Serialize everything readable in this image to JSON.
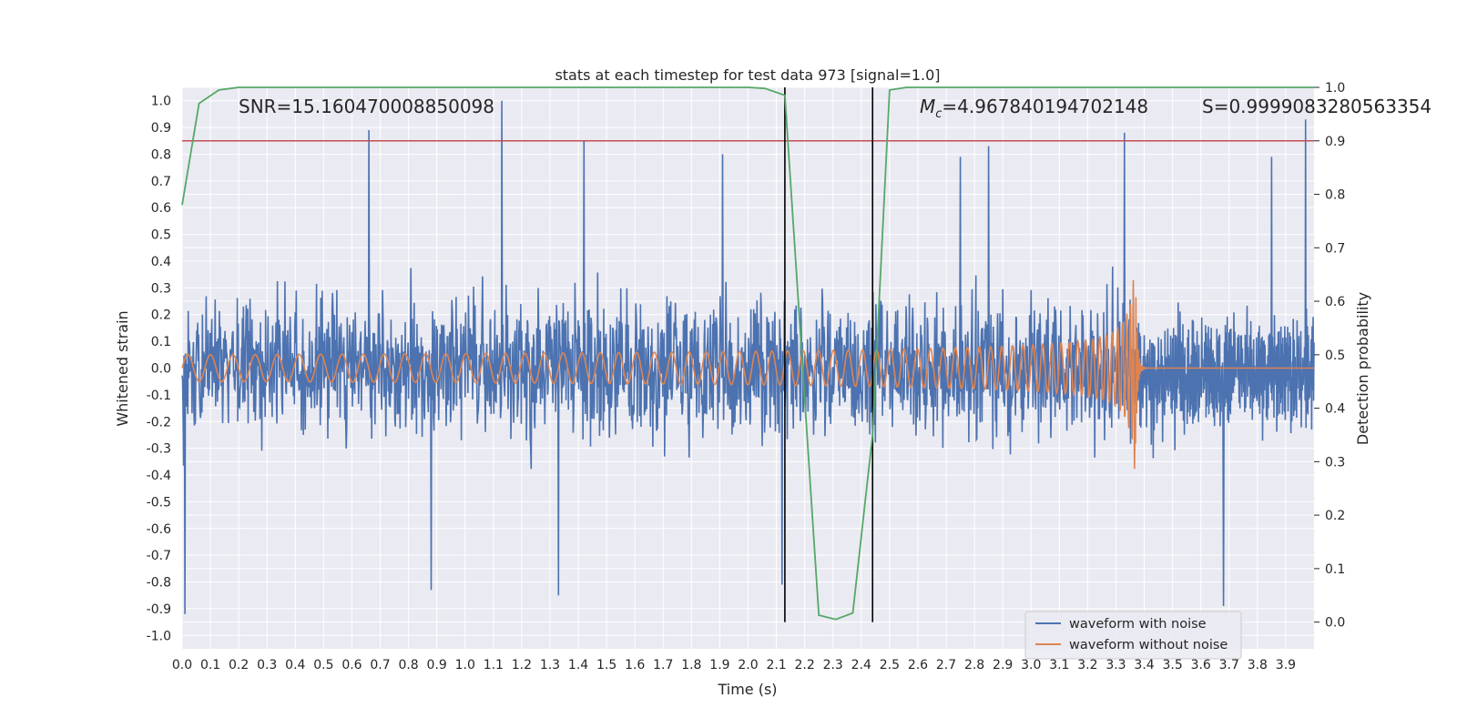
{
  "chart_data": {
    "type": "line",
    "title": "stats at each timestep for test data 973 [signal=1.0]",
    "xlabel": "Time (s)",
    "ylabel": "Whitened strain",
    "y2label": "Detection probability",
    "xlim": [
      0.0,
      4.0
    ],
    "ylim": [
      -1.05,
      1.05
    ],
    "y2lim": [
      -0.05,
      1.0
    ],
    "grid": true,
    "legend_position": "lower-right",
    "x_ticks": [
      "0.0",
      "0.1",
      "0.2",
      "0.3",
      "0.4",
      "0.5",
      "0.6",
      "0.7",
      "0.8",
      "0.9",
      "1.0",
      "1.1",
      "1.2",
      "1.3",
      "1.4",
      "1.5",
      "1.6",
      "1.7",
      "1.8",
      "1.9",
      "2.0",
      "2.1",
      "2.2",
      "2.3",
      "2.4",
      "2.5",
      "2.6",
      "2.7",
      "2.8",
      "2.9",
      "3.0",
      "3.1",
      "3.2",
      "3.3",
      "3.4",
      "3.5",
      "3.6",
      "3.7",
      "3.8",
      "3.9"
    ],
    "y_ticks": [
      "1.0",
      "0.9",
      "0.8",
      "0.7",
      "0.6",
      "0.5",
      "0.4",
      "0.3",
      "0.2",
      "0.1",
      "0.0",
      "-0.1",
      "-0.2",
      "-0.3",
      "-0.4",
      "-0.5",
      "-0.6",
      "-0.7",
      "-0.8",
      "-0.9",
      "-1.0"
    ],
    "y2_ticks": [
      "1.0",
      "0.9",
      "0.8",
      "0.7",
      "0.6",
      "0.5",
      "0.4",
      "0.3",
      "0.2",
      "0.1",
      "0.0"
    ],
    "annotations": {
      "snr": "SNR=15.160470008850098",
      "mc_symbol": "M",
      "mc_sub": "c",
      "mc_value": "=4.967840194702148",
      "s": "S=0.9999083280563354"
    },
    "series": [
      {
        "name": "waveform with noise",
        "axis": "left",
        "color": "#4c72b0",
        "kind": "noise",
        "amplitude_typical": 0.45,
        "peaks": [
          {
            "x": 0.01,
            "y": -0.92
          },
          {
            "x": 0.66,
            "y": 0.89
          },
          {
            "x": 1.13,
            "y": 1.0
          },
          {
            "x": 1.42,
            "y": 0.85
          },
          {
            "x": 0.88,
            "y": -0.83
          },
          {
            "x": 1.33,
            "y": -0.85
          },
          {
            "x": 2.12,
            "y": -0.81
          },
          {
            "x": 2.75,
            "y": 0.79
          },
          {
            "x": 2.85,
            "y": 0.83
          },
          {
            "x": 3.33,
            "y": 0.88
          },
          {
            "x": 3.68,
            "y": -0.89
          },
          {
            "x": 3.97,
            "y": 0.93
          },
          {
            "x": 3.85,
            "y": 0.79
          },
          {
            "x": 1.91,
            "y": 0.8
          }
        ]
      },
      {
        "name": "waveform without noise",
        "axis": "left",
        "color": "#dd8452",
        "kind": "chirp",
        "start_x": 0.0,
        "merger_x": 3.37,
        "start_amplitude": 0.05,
        "peak_amplitude": 0.38,
        "start_frequency_hz": 20
      },
      {
        "name": "detection probability",
        "axis": "right",
        "color": "#55a868",
        "x": [
          0.0,
          0.06,
          0.13,
          0.2,
          0.5,
          1.0,
          1.5,
          2.0,
          2.06,
          2.13,
          2.25,
          2.31,
          2.37,
          2.44,
          2.5,
          2.56,
          3.0,
          3.5,
          4.0
        ],
        "y": [
          0.78,
          0.97,
          0.995,
          1.0,
          1.0,
          1.0,
          1.0,
          1.0,
          0.998,
          0.985,
          0.013,
          0.005,
          0.017,
          0.35,
          0.995,
          1.0,
          1.0,
          1.0,
          1.0
        ]
      }
    ],
    "threshold": {
      "axis": "right",
      "value": 0.9,
      "color": "#c44e52"
    },
    "vertical_lines": [
      {
        "x": 2.13,
        "y_from": 0.0,
        "y_to": 1.0,
        "color": "#000000"
      },
      {
        "x": 2.44,
        "y_from": 0.0,
        "y_to": 1.0,
        "color": "#000000"
      }
    ],
    "colors": {
      "plot_bg": "#eaeaf2",
      "grid": "#ffffff",
      "text": "#262626"
    }
  }
}
